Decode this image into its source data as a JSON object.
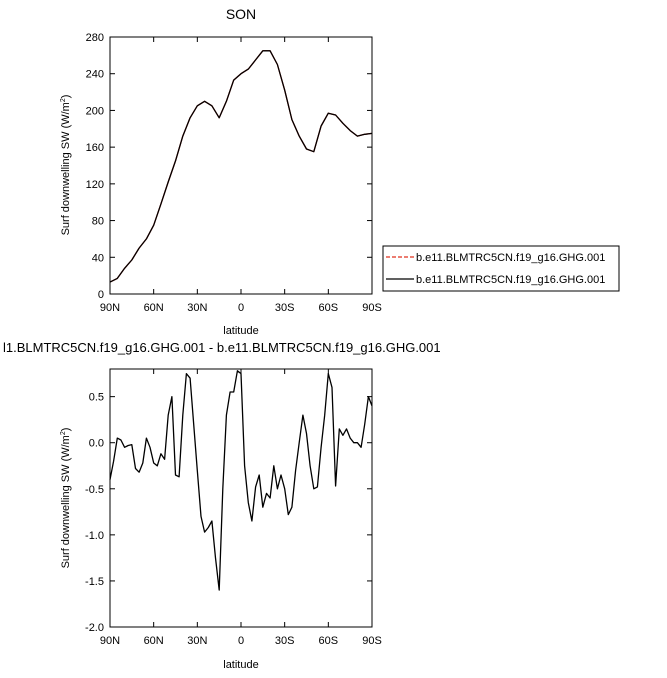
{
  "chart_data": [
    {
      "type": "line",
      "title": "SON",
      "xlabel": "latitude",
      "ylabel_main": "Surf downwelling SW (W/m",
      "ylabel_sup": "2",
      "ylabel_close": ")",
      "xlim": [
        90,
        -90
      ],
      "ylim": [
        0,
        280
      ],
      "xticks": [
        {
          "value": 90,
          "label": "90N"
        },
        {
          "value": 60,
          "label": "60N"
        },
        {
          "value": 30,
          "label": "30N"
        },
        {
          "value": 0,
          "label": "0"
        },
        {
          "value": -30,
          "label": "30S"
        },
        {
          "value": -60,
          "label": "60S"
        },
        {
          "value": -90,
          "label": "90S"
        }
      ],
      "yticks": [
        0,
        40,
        80,
        120,
        160,
        200,
        240,
        280
      ],
      "grid": false,
      "legend_position": "right",
      "legend": [
        {
          "label": "b.e11.BLMTRC5CN.f19_g16.GHG.001",
          "color": "#e0301e",
          "dash": "dashed"
        },
        {
          "label": "b.e11.BLMTRC5CN.f19_g16.GHG.001",
          "color": "#000000",
          "dash": "solid"
        }
      ],
      "x": [
        90,
        85,
        80,
        75,
        70,
        65,
        60,
        55,
        50,
        45,
        40,
        35,
        30,
        25,
        20,
        15,
        10,
        5,
        0,
        -5,
        -10,
        -15,
        -20,
        -25,
        -30,
        -35,
        -40,
        -45,
        -50,
        -55,
        -60,
        -65,
        -70,
        -75,
        -80,
        -85,
        -90
      ],
      "series": [
        {
          "color": "#e0301e",
          "values": [
            13,
            17,
            28,
            37,
            50,
            60,
            75,
            98,
            122,
            145,
            172,
            192,
            205,
            210,
            205,
            192,
            210,
            233,
            240,
            245,
            255,
            265,
            265,
            250,
            222,
            190,
            172,
            158,
            155,
            183,
            197,
            195,
            186,
            178,
            172,
            174,
            175
          ]
        },
        {
          "color": "#000000",
          "values": [
            13,
            17,
            28,
            37,
            50,
            60,
            75,
            98,
            122,
            145,
            172,
            192,
            205,
            210,
            205,
            192,
            210,
            233,
            240,
            245,
            255,
            265,
            265,
            250,
            222,
            190,
            172,
            158,
            155,
            183,
            197,
            195,
            186,
            178,
            172,
            174,
            175
          ]
        }
      ]
    },
    {
      "type": "line",
      "title": "l1.BLMTRC5CN.f19_g16.GHG.001 - b.e11.BLMTRC5CN.f19_g16.GHG.001",
      "xlabel": "latitude",
      "ylabel_main": "Surf downwelling SW (W/m",
      "ylabel_sup": "2",
      "ylabel_close": ")",
      "xlim": [
        90,
        -90
      ],
      "ylim": [
        -2.0,
        0.8
      ],
      "xticks": [
        {
          "value": 90,
          "label": "90N"
        },
        {
          "value": 60,
          "label": "60N"
        },
        {
          "value": 30,
          "label": "30N"
        },
        {
          "value": 0,
          "label": "0"
        },
        {
          "value": -30,
          "label": "30S"
        },
        {
          "value": -60,
          "label": "60S"
        },
        {
          "value": -90,
          "label": "90S"
        }
      ],
      "yticks": [
        {
          "value": -2.0,
          "label": "-2.0"
        },
        {
          "value": -1.5,
          "label": "-1.5"
        },
        {
          "value": -1.0,
          "label": "-1.0"
        },
        {
          "value": -0.5,
          "label": "-0.5"
        },
        {
          "value": 0.0,
          "label": "0.0"
        },
        {
          "value": 0.5,
          "label": "0.5"
        }
      ],
      "grid": false,
      "series": [
        {
          "color": "#000000",
          "x": [
            90,
            87.5,
            85,
            82.5,
            80,
            77.5,
            75,
            72.5,
            70,
            67.5,
            65,
            62.5,
            60,
            57.5,
            55,
            52.5,
            50,
            47.5,
            45,
            42.5,
            40,
            37.5,
            35,
            32.5,
            30,
            27.5,
            25,
            22.5,
            20,
            17.5,
            15,
            12.5,
            10,
            7.5,
            5,
            2.5,
            0,
            -2.5,
            -5,
            -7.5,
            -10,
            -12.5,
            -15,
            -17.5,
            -20,
            -22.5,
            -25,
            -27.5,
            -30,
            -32.5,
            -35,
            -37.5,
            -40,
            -42.5,
            -45,
            -47.5,
            -50,
            -52.5,
            -55,
            -57.5,
            -60,
            -62.5,
            -65,
            -67.5,
            -70,
            -72.5,
            -75,
            -77.5,
            -80,
            -82.5,
            -85,
            -87.5,
            -90
          ],
          "values": [
            -0.4,
            -0.2,
            0.05,
            0.03,
            -0.05,
            -0.03,
            -0.02,
            -0.28,
            -0.32,
            -0.22,
            0.05,
            -0.05,
            -0.22,
            -0.25,
            -0.12,
            -0.18,
            0.3,
            0.5,
            -0.35,
            -0.37,
            0.3,
            0.75,
            0.7,
            0.2,
            -0.3,
            -0.8,
            -0.97,
            -0.92,
            -0.85,
            -1.25,
            -1.6,
            -0.5,
            0.3,
            0.55,
            0.55,
            0.78,
            0.75,
            -0.25,
            -0.65,
            -0.85,
            -0.48,
            -0.35,
            -0.7,
            -0.55,
            -0.6,
            -0.25,
            -0.5,
            -0.35,
            -0.5,
            -0.78,
            -0.7,
            -0.3,
            0.0,
            0.3,
            0.1,
            -0.25,
            -0.5,
            -0.48,
            -0.05,
            0.3,
            0.75,
            0.6,
            -0.47,
            0.15,
            0.08,
            0.15,
            0.05,
            0.0,
            0.0,
            -0.05,
            0.2,
            0.5,
            0.4
          ]
        }
      ]
    }
  ]
}
